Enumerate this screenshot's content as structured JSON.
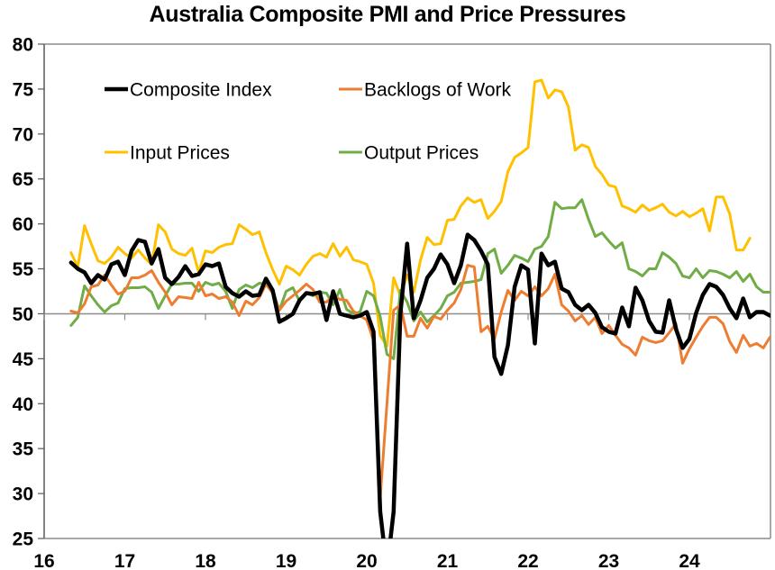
{
  "chart_data": {
    "type": "line",
    "title": "Australia Composite PMI and Price Pressures",
    "xlabel": "",
    "ylabel": "",
    "ylim": [
      25,
      80
    ],
    "yticks": [
      25,
      30,
      35,
      40,
      45,
      50,
      55,
      60,
      65,
      70,
      75,
      80
    ],
    "xticks": [
      "16",
      "17",
      "18",
      "19",
      "20",
      "21",
      "22",
      "23",
      "24"
    ],
    "xrange_years": [
      2016,
      2025
    ],
    "reference_line": 50,
    "grid": false,
    "legend_position": "top-left (inside plot, 2 columns)",
    "x_start": "2016-05",
    "frequency": "monthly",
    "series": [
      {
        "name": "Composite Index",
        "color": "#000000",
        "values": [
          55.7,
          55.0,
          54.6,
          53.4,
          54.3,
          53.8,
          55.5,
          55.8,
          54.3,
          57.0,
          58.2,
          58.0,
          55.6,
          57.2,
          54.0,
          53.3,
          54.1,
          55.3,
          54.2,
          54.4,
          55.5,
          55.3,
          55.6,
          53.0,
          52.3,
          51.9,
          52.5,
          52.0,
          52.1,
          53.9,
          52.6,
          49.1,
          49.5,
          50.0,
          51.5,
          52.3,
          52.2,
          52.4,
          49.3,
          52.5,
          50.0,
          49.8,
          49.6,
          49.8,
          50.2,
          48.0,
          28.0,
          21.5,
          28.0,
          50.0,
          57.8,
          49.5,
          51.5,
          54.0,
          55.0,
          56.6,
          55.5,
          53.4,
          55.4,
          58.8,
          58.2,
          57.0,
          55.5,
          45.2,
          43.3,
          46.5,
          53.0,
          55.4,
          54.9,
          46.7,
          56.7,
          55.4,
          55.8,
          52.8,
          52.4,
          51.0,
          50.4,
          51.0,
          50.1,
          48.5,
          48.0,
          47.8,
          50.7,
          48.6,
          52.9,
          51.5,
          49.2,
          48.0,
          47.9,
          51.5,
          48.3,
          46.2,
          47.2,
          50.1,
          52.1,
          53.3,
          53.0,
          52.1,
          50.6,
          49.5,
          51.7,
          49.6,
          50.2,
          50.2,
          49.8
        ]
      },
      {
        "name": "Backlogs of Work",
        "color": "#ED7D31",
        "values": [
          50.3,
          50.1,
          51.1,
          53.0,
          53.2,
          54.3,
          53.2,
          52.2,
          52.5,
          54.0,
          54.0,
          54.3,
          54.8,
          53.5,
          52.4,
          51.0,
          51.9,
          51.8,
          51.7,
          53.5,
          52.0,
          52.2,
          51.7,
          51.9,
          51.3,
          49.8,
          51.4,
          51.0,
          51.8,
          53.3,
          52.3,
          50.4,
          51.4,
          52.0,
          52.6,
          53.3,
          52.7,
          51.3,
          51.3,
          52.0,
          51.6,
          51.5,
          50.3,
          49.8,
          49.3,
          47.0,
          29.5,
          40.0,
          50.4,
          51.0,
          47.5,
          47.5,
          49.5,
          48.4,
          49.7,
          49.4,
          50.4,
          51.2,
          52.7,
          55.4,
          55.2,
          48.0,
          48.6,
          47.2,
          50.2,
          52.6,
          51.5,
          52.5,
          52.0,
          53.0,
          52.0,
          52.8,
          54.4,
          51.0,
          50.3,
          49.2,
          49.8,
          48.8,
          49.6,
          47.8,
          48.7,
          47.6,
          46.6,
          46.2,
          45.4,
          47.4,
          47.0,
          46.8,
          47.0,
          47.9,
          48.9,
          44.5,
          46.1,
          47.4,
          48.6,
          49.6,
          49.6,
          48.9,
          46.9,
          45.7,
          47.6,
          46.4,
          46.7,
          46.2,
          47.4
        ]
      },
      {
        "name": "Input Prices",
        "color": "#FFC000",
        "values": [
          56.8,
          55.2,
          59.8,
          57.8,
          55.9,
          55.6,
          56.3,
          57.4,
          56.7,
          56.2,
          57.1,
          56.2,
          55.5,
          59.9,
          59.1,
          57.2,
          56.7,
          56.5,
          57.3,
          54.6,
          57.0,
          56.8,
          57.4,
          57.7,
          57.8,
          59.9,
          59.4,
          58.8,
          59.1,
          56.8,
          54.9,
          53.3,
          55.3,
          54.9,
          54.3,
          55.5,
          56.4,
          56.7,
          56.3,
          57.8,
          56.4,
          57.4,
          56.0,
          55.8,
          55.5,
          53.4,
          47.6,
          46.4,
          54.0,
          52.0,
          54.3,
          52.4,
          56.0,
          58.5,
          57.7,
          57.8,
          60.4,
          60.5,
          62.0,
          62.9,
          62.4,
          62.7,
          60.6,
          61.4,
          62.5,
          65.8,
          67.4,
          67.9,
          68.5,
          75.8,
          76.0,
          74.0,
          74.9,
          74.7,
          73.0,
          68.2,
          68.8,
          68.5,
          66.4,
          65.5,
          64.3,
          64.1,
          62.0,
          61.7,
          61.3,
          62.1,
          61.5,
          61.8,
          62.2,
          61.3,
          60.9,
          61.4,
          60.8,
          61.2,
          61.7,
          59.2,
          63.0,
          63.0,
          61.1,
          57.1,
          57.1,
          58.4
        ]
      },
      {
        "name": "Output Prices",
        "color": "#70AD47",
        "values": [
          48.7,
          49.6,
          53.1,
          52.0,
          51.0,
          50.2,
          50.9,
          51.2,
          52.8,
          52.9,
          52.9,
          53.0,
          52.4,
          50.6,
          52.0,
          53.3,
          53.3,
          53.4,
          53.4,
          52.5,
          53.5,
          53.2,
          53.4,
          52.5,
          50.6,
          52.7,
          53.2,
          52.9,
          53.4,
          53.3,
          52.6,
          50.4,
          52.5,
          52.9,
          51.4,
          52.3,
          52.0,
          52.4,
          52.3,
          51.0,
          52.7,
          50.5,
          50.0,
          50.2,
          52.5,
          52.0,
          49.7,
          45.5,
          45.0,
          52.6,
          51.3,
          49.2,
          50.2,
          49.1,
          49.8,
          50.6,
          52.0,
          52.4,
          53.4,
          53.5,
          53.6,
          53.8,
          56.7,
          57.2,
          54.5,
          55.4,
          56.5,
          56.2,
          55.8,
          57.2,
          57.5,
          58.6,
          62.4,
          61.7,
          61.8,
          61.8,
          62.7,
          60.5,
          58.6,
          59.0,
          58.1,
          57.3,
          57.9,
          55.0,
          54.7,
          54.2,
          55.0,
          55.0,
          56.8,
          56.3,
          55.6,
          54.2,
          54.0,
          55.0,
          54.0,
          54.8,
          54.7,
          54.4,
          54.0,
          54.7,
          53.6,
          54.4,
          53.0,
          52.4,
          52.4
        ]
      }
    ]
  },
  "legend": [
    {
      "label": "Composite Index",
      "color": "#000000"
    },
    {
      "label": "Backlogs of Work",
      "color": "#ED7D31"
    },
    {
      "label": "Input Prices",
      "color": "#FFC000"
    },
    {
      "label": "Output Prices",
      "color": "#70AD47"
    }
  ]
}
